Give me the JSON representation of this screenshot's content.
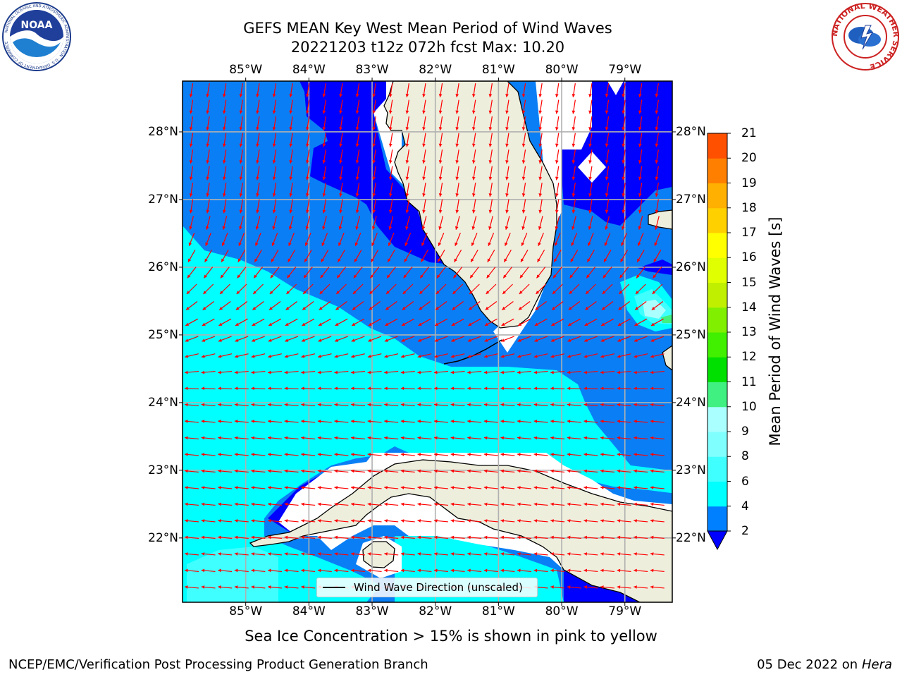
{
  "header": {
    "title_line1": "GEFS MEAN Key West Mean Period of Wind Waves",
    "title_line2": "20221203 t12z 072h fcst   Max: 10.20"
  },
  "logos": {
    "noaa_text": "NOAA",
    "noaa_ring_text": "NATIONAL OCEANIC AND ATMOSPHERIC ADMINISTRATION · U.S. DEPARTMENT OF COMMERCE",
    "nws_ring_text": "NATIONAL WEATHER SERVICE"
  },
  "map": {
    "lon_labels": [
      "85°W",
      "84°W",
      "83°W",
      "82°W",
      "81°W",
      "80°W",
      "79°W"
    ],
    "lat_labels": [
      "28°N",
      "27°N",
      "26°N",
      "25°N",
      "24°N",
      "23°N",
      "22°N"
    ],
    "lon_min": -86.0,
    "lon_max": -78.25,
    "lat_min": 21.05,
    "lat_max": 28.75,
    "land_color": "#eeeedd",
    "grid_color": "#b0b0b0",
    "arrow_color": "#ff0000",
    "legend_label": "Wind Wave Direction (unscaled)"
  },
  "colorbar": {
    "title": "Mean Period of Wind Waves [s]",
    "ticks": [
      "2",
      "4",
      "6",
      "8",
      "9",
      "10",
      "11",
      "12",
      "13",
      "14",
      "15",
      "16",
      "17",
      "18",
      "19",
      "20",
      "21"
    ],
    "colors": [
      "#0080ff",
      "#00ffff",
      "#40ffff",
      "#80ffff",
      "#aaffff",
      "#40f080",
      "#00e000",
      "#40f000",
      "#80f000",
      "#c0f000",
      "#e0ff00",
      "#ffff00",
      "#ffd000",
      "#ffb000",
      "#ff8000",
      "#ff5000",
      "#ff2000",
      "#ff0000"
    ],
    "under_color": "#0000ff"
  },
  "notes": {
    "sea_ice": "Sea Ice Concentration > 15% is shown in pink to yellow",
    "producer": "NCEP/EMC/Verification Post Processing Product Generation Branch",
    "date": "05 Dec 2022 on",
    "machine": "Hera"
  }
}
